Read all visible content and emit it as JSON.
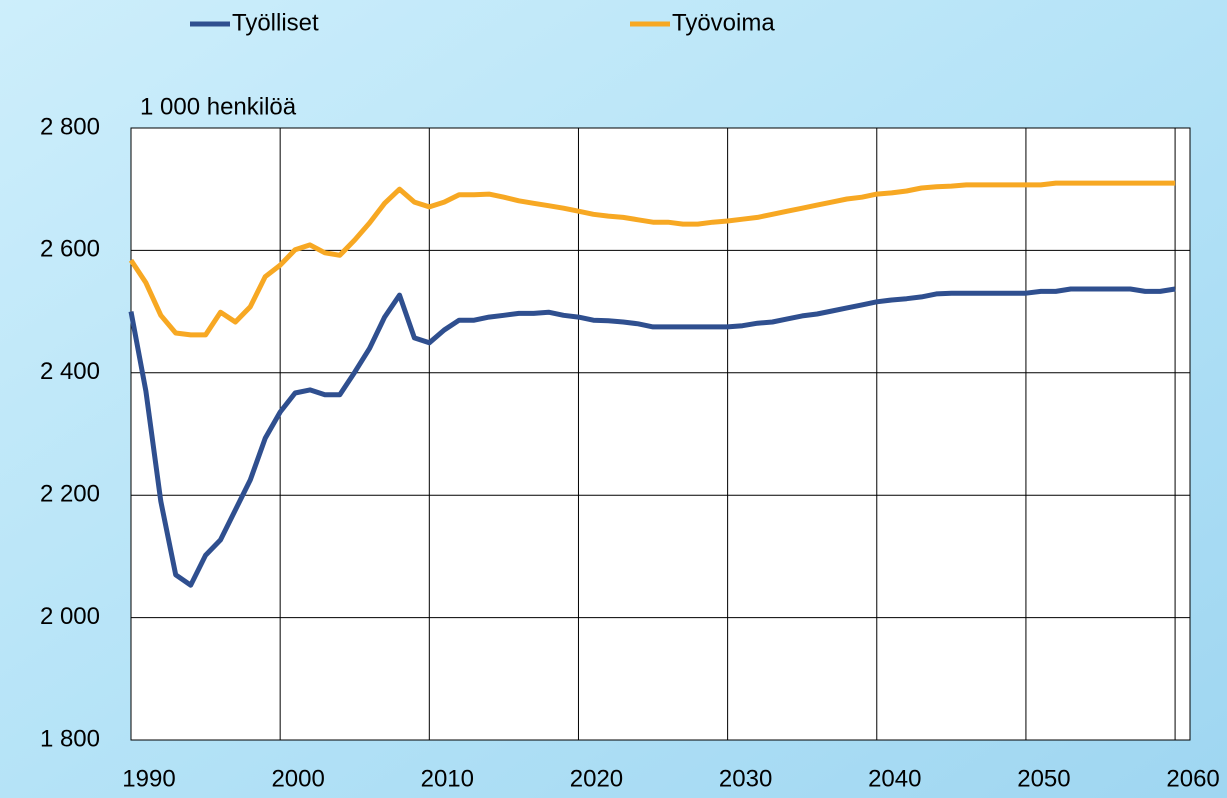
{
  "chart_data": {
    "type": "line",
    "y_axis_label": "1 000 henkilöä",
    "x": [
      1990,
      1991,
      1992,
      1993,
      1994,
      1995,
      1996,
      1997,
      1998,
      1999,
      2000,
      2001,
      2002,
      2003,
      2004,
      2005,
      2006,
      2007,
      2008,
      2009,
      2010,
      2011,
      2012,
      2013,
      2014,
      2015,
      2016,
      2017,
      2018,
      2019,
      2020,
      2021,
      2022,
      2023,
      2024,
      2025,
      2026,
      2027,
      2028,
      2029,
      2030,
      2031,
      2032,
      2033,
      2034,
      2035,
      2036,
      2037,
      2038,
      2039,
      2040,
      2041,
      2042,
      2043,
      2044,
      2045,
      2046,
      2047,
      2048,
      2049,
      2050,
      2051,
      2052,
      2053,
      2054,
      2055,
      2056,
      2057,
      2058,
      2059,
      2060
    ],
    "series": [
      {
        "name": "Työlliset",
        "color": "#2f4f8f",
        "values": [
          2500,
          2370,
          2190,
          2070,
          2053,
          2102,
          2127,
          2176,
          2225,
          2293,
          2336,
          2367,
          2372,
          2364,
          2364,
          2401,
          2440,
          2491,
          2527,
          2457,
          2449,
          2470,
          2486,
          2486,
          2491,
          2494,
          2497,
          2497,
          2499,
          2494,
          2491,
          2486,
          2485,
          2483,
          2480,
          2475,
          2475,
          2475,
          2475,
          2475,
          2475,
          2477,
          2481,
          2483,
          2488,
          2493,
          2496,
          2501,
          2506,
          2511,
          2516,
          2519,
          2521,
          2524,
          2529,
          2530,
          2530,
          2530,
          2530,
          2530,
          2530,
          2533,
          2533,
          2537,
          2537,
          2537,
          2537,
          2537,
          2533,
          2533,
          2537
        ]
      },
      {
        "name": "Työvoima",
        "color": "#f7a823",
        "values": [
          2584,
          2547,
          2494,
          2465,
          2462,
          2462,
          2499,
          2483,
          2508,
          2557,
          2576,
          2601,
          2609,
          2596,
          2592,
          2617,
          2645,
          2677,
          2700,
          2679,
          2671,
          2679,
          2691,
          2691,
          2692,
          2687,
          2681,
          2677,
          2673,
          2669,
          2664,
          2659,
          2656,
          2654,
          2650,
          2646,
          2646,
          2643,
          2643,
          2646,
          2648,
          2651,
          2654,
          2659,
          2664,
          2669,
          2674,
          2679,
          2684,
          2687,
          2692,
          2694,
          2697,
          2702,
          2704,
          2705,
          2707,
          2707,
          2707,
          2707,
          2707,
          2707,
          2710,
          2710,
          2710,
          2710,
          2710,
          2710,
          2710,
          2710,
          2710
        ]
      }
    ],
    "xlim": [
      1990,
      2061
    ],
    "xticks": [
      1990,
      2000,
      2010,
      2020,
      2030,
      2040,
      2050,
      2060
    ],
    "ylim": [
      1800,
      2800
    ],
    "yticks": [
      {
        "value": 1800,
        "label": "1 800"
      },
      {
        "value": 2000,
        "label": "2 000"
      },
      {
        "value": 2200,
        "label": "2 200"
      },
      {
        "value": 2400,
        "label": "2 400"
      },
      {
        "value": 2600,
        "label": "2 600"
      },
      {
        "value": 2800,
        "label": "2 800"
      }
    ],
    "grid": true
  }
}
